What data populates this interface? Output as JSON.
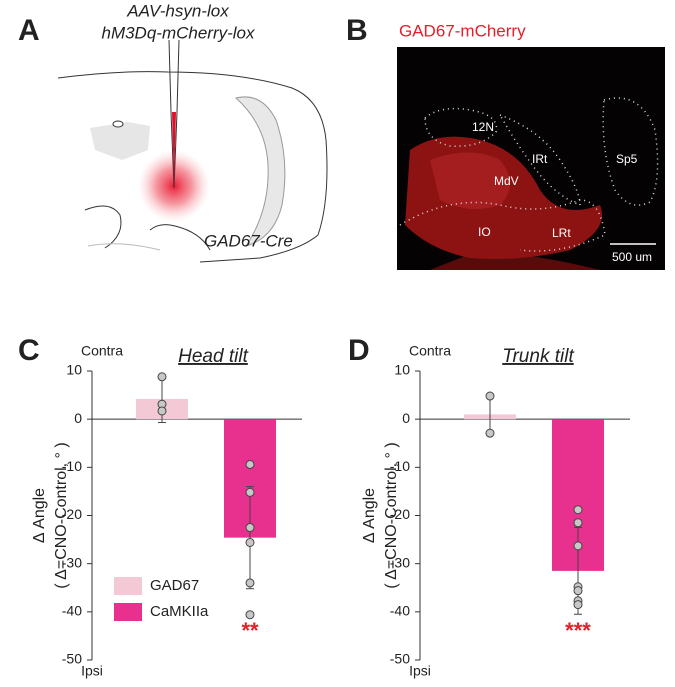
{
  "panel_a": {
    "letter": "A",
    "virus_line1": "AAV-hsyn-lox",
    "virus_line2": "hM3Dq-mCherry-lox",
    "mouse_line": "GAD67-Cre"
  },
  "panel_b": {
    "letter": "B",
    "title": "GAD67-mCherry",
    "regions": [
      "12N",
      "IRt",
      "MdV",
      "Sp5",
      "IO",
      "LRt"
    ],
    "scale_bar": "500 um"
  },
  "chart_data": [
    {
      "type": "bar",
      "letter": "C",
      "title": "Head tilt",
      "top_label": "Contra",
      "bottom_label": "Ipsi",
      "ylabel": "Δ Angle",
      "ylabel_sub": "( Δ=CNO-Control, ° )",
      "ylim": [
        -50,
        10
      ],
      "yticks": [
        10,
        0,
        -10,
        -20,
        -30,
        -40,
        -50
      ],
      "legend": true,
      "series": [
        {
          "name": "GAD67",
          "color": "#f2c9d4",
          "values": [
            4.2
          ],
          "errors": [
            4.9
          ],
          "points": [
            [
              8.8,
              3.1,
              1.7
            ]
          ]
        },
        {
          "name": "CaMKIIa",
          "color": "#e8318f",
          "values": [
            -24.6
          ],
          "errors": [
            10.6
          ],
          "points": [
            [
              -9.4,
              -15.2,
              -22.5,
              -25.6,
              -34.0,
              -40.6
            ]
          ],
          "significance": "**"
        }
      ]
    },
    {
      "type": "bar",
      "letter": "D",
      "title": "Trunk tilt",
      "top_label": "Contra",
      "bottom_label": "Ipsi",
      "ylabel": "Δ Angle",
      "ylabel_sub": "( Δ=CNO-Control, ° )",
      "ylim": [
        -50,
        10
      ],
      "yticks": [
        10,
        0,
        -10,
        -20,
        -30,
        -40,
        -50
      ],
      "legend": false,
      "series": [
        {
          "name": "GAD67",
          "color": "#f2c9d4",
          "values": [
            1.0
          ],
          "errors": [
            3.9
          ],
          "points": [
            [
              4.8,
              -2.9
            ]
          ]
        },
        {
          "name": "CaMKIIa",
          "color": "#e8318f",
          "values": [
            -31.5
          ],
          "errors": [
            9.0
          ],
          "points": [
            [
              -18.8,
              -21.5,
              -26.3,
              -34.8,
              -35.6,
              -37.7,
              -38.5
            ]
          ],
          "significance": "***"
        }
      ]
    }
  ]
}
